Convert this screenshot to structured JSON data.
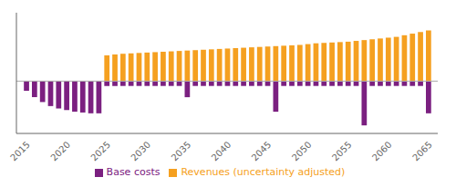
{
  "chart_data": {
    "type": "bar",
    "x": [
      2015,
      2016,
      2017,
      2018,
      2019,
      2020,
      2021,
      2022,
      2023,
      2024,
      2025,
      2026,
      2027,
      2028,
      2029,
      2030,
      2031,
      2032,
      2033,
      2034,
      2035,
      2036,
      2037,
      2038,
      2039,
      2040,
      2041,
      2042,
      2043,
      2044,
      2045,
      2046,
      2047,
      2048,
      2049,
      2050,
      2051,
      2052,
      2053,
      2054,
      2055,
      2056,
      2057,
      2058,
      2059,
      2060,
      2061,
      2062,
      2063,
      2064,
      2065
    ],
    "series": [
      {
        "name": "Base costs",
        "color": "#7B2080",
        "values": [
          -1.2,
          -2.0,
          -2.6,
          -3.1,
          -3.4,
          -3.6,
          -3.8,
          -3.9,
          -4.0,
          -4.0,
          -0.6,
          -0.6,
          -0.6,
          -0.6,
          -0.6,
          -0.6,
          -0.6,
          -0.6,
          -0.6,
          -0.6,
          -2.0,
          -0.6,
          -0.6,
          -0.6,
          -0.6,
          -0.6,
          -0.6,
          -0.6,
          -0.6,
          -0.6,
          -0.6,
          -3.8,
          -0.6,
          -0.6,
          -0.6,
          -0.6,
          -0.6,
          -0.6,
          -0.6,
          -0.6,
          -0.6,
          -0.6,
          -5.5,
          -0.6,
          -0.6,
          -0.6,
          -0.6,
          -0.6,
          -0.6,
          -0.6,
          -4.0
        ]
      },
      {
        "name": "Revenues (uncertainty adjusted)",
        "color": "#F5A020",
        "values": [
          0,
          0,
          0,
          0,
          0,
          0,
          0,
          0,
          0,
          0,
          3.2,
          3.3,
          3.4,
          3.45,
          3.5,
          3.55,
          3.6,
          3.65,
          3.7,
          3.75,
          3.8,
          3.85,
          3.9,
          3.95,
          4.0,
          4.05,
          4.1,
          4.15,
          4.2,
          4.25,
          4.3,
          4.35,
          4.4,
          4.45,
          4.5,
          4.6,
          4.7,
          4.75,
          4.8,
          4.85,
          4.9,
          5.0,
          5.1,
          5.2,
          5.3,
          5.4,
          5.5,
          5.7,
          5.9,
          6.1,
          6.3
        ]
      }
    ],
    "xlim": [
      2013.8,
      2066.2
    ],
    "xticks": [
      2015,
      2020,
      2025,
      2030,
      2035,
      2040,
      2045,
      2050,
      2055,
      2060,
      2065
    ],
    "ylim": [
      -6.5,
      8.5
    ],
    "tick_labels": "x",
    "legend": "bottom",
    "grid": false
  }
}
